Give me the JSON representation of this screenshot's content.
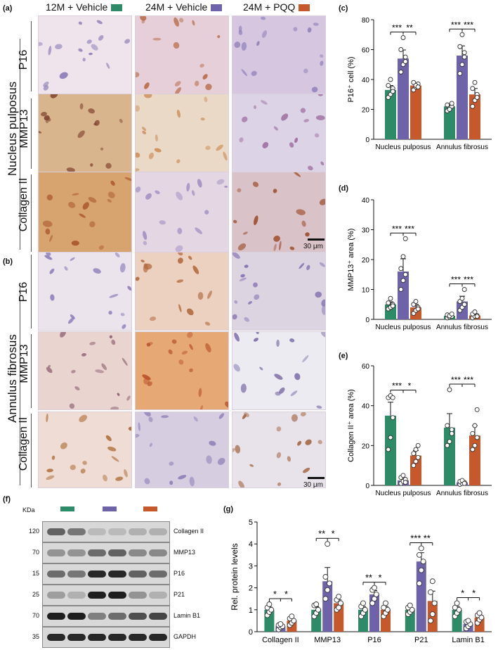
{
  "panel_letters": {
    "a": "(a)",
    "b": "(b)",
    "c": "(c)",
    "d": "(d)",
    "e": "(e)",
    "f": "(f)",
    "g": "(g)"
  },
  "groups": [
    {
      "label": "12M + Vehicle",
      "color": "#2e8b67"
    },
    {
      "label": "24M + Vehicle",
      "color": "#6e63a9"
    },
    {
      "label": "24M + PQQ",
      "color": "#c5592b"
    }
  ],
  "histology": {
    "np_label": "Nucleus pulposus",
    "af_label": "Annulus fibrosus",
    "rows": [
      "P16",
      "MMP13",
      "Collagen II"
    ],
    "scale_bar": "30 μm"
  },
  "colors": {
    "ctrl": "#2e8b67",
    "old": "#6e63a9",
    "pqq": "#c5592b"
  },
  "western": {
    "kda_header": "KDa",
    "blots": [
      {
        "kda": "120",
        "name": "Collagen II"
      },
      {
        "kda": "70",
        "name": "MMP13"
      },
      {
        "kda": "15",
        "name": "P16"
      },
      {
        "kda": "25",
        "name": "P21"
      },
      {
        "kda": "70",
        "name": "Lamin B1"
      },
      {
        "kda": "35",
        "name": "GAPDH"
      }
    ]
  },
  "chart_data": [
    {
      "panel": "c",
      "type": "bar",
      "ylabel": "P16⁺ cell (%)",
      "categories": [
        "Nucleus pulposus",
        "Annulus fibrosus"
      ],
      "ylim": [
        0,
        80
      ],
      "yticks": [
        0,
        20,
        40,
        60,
        80
      ],
      "series": [
        {
          "name": "12M + Vehicle",
          "values": [
            33,
            22
          ],
          "points": [
            [
              28,
              30,
              34,
              36,
              40,
              32
            ],
            [
              19,
              21,
              22,
              23,
              20,
              24
            ]
          ]
        },
        {
          "name": "24M + Vehicle",
          "values": [
            54,
            56
          ],
          "points": [
            [
              45,
              50,
              55,
              60,
              68,
              52
            ],
            [
              44,
              50,
              58,
              62,
              70,
              55
            ]
          ]
        },
        {
          "name": "24M + PQQ",
          "values": [
            36,
            30
          ],
          "points": [
            [
              33,
              35,
              37,
              38,
              36,
              35
            ],
            [
              22,
              26,
              30,
              34,
              38,
              28
            ]
          ]
        }
      ],
      "significance": [
        [
          "***",
          "**"
        ],
        [
          "***",
          "***"
        ]
      ]
    },
    {
      "panel": "d",
      "type": "bar",
      "ylabel": "MMP13⁺ area (%)",
      "categories": [
        "Nucleus pulposus",
        "Annulus fibrosus"
      ],
      "ylim": [
        0,
        40
      ],
      "yticks": [
        0,
        10,
        20,
        30,
        40
      ],
      "series": [
        {
          "name": "12M + Vehicle",
          "values": [
            5,
            1.2
          ],
          "points": [
            [
              3.5,
              4,
              5,
              5.5,
              7,
              4.5
            ],
            [
              0.5,
              0.8,
              1,
              1.5,
              1.2,
              1.8
            ]
          ]
        },
        {
          "name": "24M + Vehicle",
          "values": [
            16,
            6
          ],
          "points": [
            [
              10,
              13,
              15,
              17,
              21,
              27
            ],
            [
              3,
              4,
              5,
              6,
              7,
              10
            ]
          ]
        },
        {
          "name": "24M + PQQ",
          "values": [
            4,
            1.3
          ],
          "points": [
            [
              2,
              3,
              4,
              5,
              6,
              3.5
            ],
            [
              0.5,
              1,
              1.3,
              1.8,
              2.5,
              1
            ]
          ]
        }
      ],
      "significance": [
        [
          "***",
          "***"
        ],
        [
          "***",
          "***"
        ]
      ]
    },
    {
      "panel": "e",
      "type": "bar",
      "ylabel": "Collagen II⁺ area (%)",
      "categories": [
        "Nucleus pulposus",
        "Annulus fibrosus"
      ],
      "ylim": [
        0,
        60
      ],
      "yticks": [
        0,
        20,
        40,
        60
      ],
      "series": [
        {
          "name": "12M + Vehicle",
          "values": [
            35,
            29
          ],
          "points": [
            [
              18,
              24,
              34,
              44,
              45,
              44
            ],
            [
              20,
              22,
              28,
              30,
              48,
              26
            ]
          ]
        },
        {
          "name": "24M + Vehicle",
          "values": [
            2.5,
            1.5
          ],
          "points": [
            [
              1,
              2,
              3,
              4,
              5,
              1.5
            ],
            [
              0.5,
              1,
              1.5,
              2,
              2.5,
              1
            ]
          ]
        },
        {
          "name": "24M + PQQ",
          "values": [
            15,
            25
          ],
          "points": [
            [
              10,
              12,
              14,
              16,
              18,
              20
            ],
            [
              18,
              20,
              24,
              26,
              30,
              38
            ]
          ]
        }
      ],
      "significance": [
        [
          "***",
          "*"
        ],
        [
          "***",
          "***"
        ]
      ]
    },
    {
      "panel": "g",
      "type": "bar",
      "ylabel": "Rel. protein levels",
      "categories": [
        "Collagen II",
        "MMP13",
        "P16",
        "P21",
        "Lamin B1"
      ],
      "ylim": [
        0,
        5
      ],
      "yticks": [
        0,
        1,
        2,
        3,
        4,
        5
      ],
      "series": [
        {
          "name": "12M + Vehicle",
          "values": [
            1,
            1,
            1,
            1,
            1
          ],
          "points": [
            [
              0.75,
              0.9,
              1.0,
              1.1,
              1.25
            ],
            [
              0.7,
              0.85,
              1.0,
              1.2,
              1.25
            ],
            [
              0.7,
              0.85,
              1.0,
              1.15,
              1.3
            ],
            [
              0.8,
              0.9,
              1.0,
              1.1,
              1.2
            ],
            [
              0.7,
              0.85,
              1.0,
              1.1,
              1.3
            ]
          ]
        },
        {
          "name": "24M + Vehicle",
          "values": [
            0.25,
            2.3,
            1.7,
            3.2,
            0.35
          ],
          "points": [
            [
              0.1,
              0.2,
              0.25,
              0.3,
              0.35
            ],
            [
              1.5,
              1.9,
              2.2,
              2.5,
              4.0
            ],
            [
              1.3,
              1.5,
              1.7,
              1.9,
              2.0
            ],
            [
              2.2,
              2.8,
              3.2,
              3.5,
              3.8
            ],
            [
              0.15,
              0.25,
              0.35,
              0.45,
              0.5
            ]
          ]
        },
        {
          "name": "24M + PQQ",
          "values": [
            0.5,
            1.3,
            1.0,
            1.4,
            0.65
          ],
          "points": [
            [
              0.3,
              0.4,
              0.5,
              0.6,
              0.7
            ],
            [
              1.0,
              1.1,
              1.3,
              1.45,
              1.6
            ],
            [
              0.7,
              0.85,
              1.0,
              1.1,
              1.3
            ],
            [
              0.5,
              0.8,
              1.3,
              1.8,
              2.3
            ],
            [
              0.4,
              0.55,
              0.65,
              0.75,
              0.85
            ]
          ]
        }
      ],
      "significance": [
        [
          "*",
          "*"
        ],
        [
          "**",
          "*"
        ],
        [
          "**",
          "*"
        ],
        [
          "***",
          "**"
        ],
        [
          "*",
          "*"
        ]
      ]
    }
  ]
}
